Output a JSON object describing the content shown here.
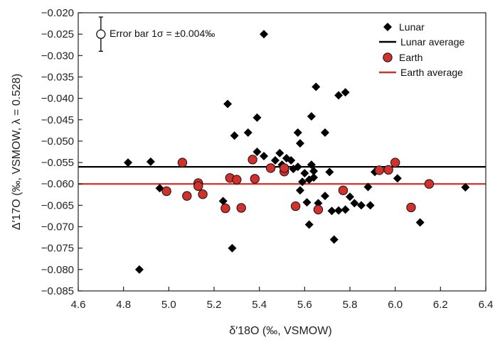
{
  "chart_data": {
    "type": "scatter",
    "title": "",
    "xlabel": "δ′18O (‰, VSMOW)",
    "ylabel": "Δ′17O (‰, VSMOW, λ = 0.528)",
    "xlim": [
      4.6,
      6.4
    ],
    "ylim": [
      -0.085,
      -0.02
    ],
    "x_ticks": [
      4.6,
      4.8,
      5.0,
      5.2,
      5.4,
      5.6,
      5.8,
      6.0,
      6.2,
      6.4
    ],
    "x_tick_labels": [
      "4.6",
      "4.8",
      "5.0",
      "5.2",
      "5.4",
      "5.6",
      "5.8",
      "6.0",
      "6.2",
      "6.4"
    ],
    "y_ticks": [
      -0.02,
      -0.025,
      -0.03,
      -0.035,
      -0.04,
      -0.045,
      -0.05,
      -0.055,
      -0.06,
      -0.065,
      -0.07,
      -0.075,
      -0.08,
      -0.085
    ],
    "y_tick_labels": [
      "−0.020",
      "−0.025",
      "−0.030",
      "−0.035",
      "−0.040",
      "−0.045",
      "−0.050",
      "−0.055",
      "−0.060",
      "−0.065",
      "−0.070",
      "−0.075",
      "−0.080",
      "−0.085"
    ],
    "grid": false,
    "legend_position": "top-right",
    "annotation": {
      "text": "Error bar 1σ = ±0.004‰",
      "x": 4.7,
      "y": -0.025,
      "error": 0.004
    },
    "series": [
      {
        "name": "Lunar",
        "marker": "diamond",
        "color": "#000000",
        "points": [
          [
            4.82,
            -0.055
          ],
          [
            4.87,
            -0.08
          ],
          [
            4.92,
            -0.0548
          ],
          [
            4.96,
            -0.061
          ],
          [
            5.24,
            -0.064
          ],
          [
            5.26,
            -0.0413
          ],
          [
            5.28,
            -0.075
          ],
          [
            5.29,
            -0.0487
          ],
          [
            5.35,
            -0.048
          ],
          [
            5.39,
            -0.0445
          ],
          [
            5.39,
            -0.0525
          ],
          [
            5.42,
            -0.025
          ],
          [
            5.42,
            -0.0535
          ],
          [
            5.47,
            -0.0545
          ],
          [
            5.49,
            -0.0528
          ],
          [
            5.5,
            -0.0555
          ],
          [
            5.52,
            -0.054
          ],
          [
            5.54,
            -0.0545
          ],
          [
            5.55,
            -0.0565
          ],
          [
            5.57,
            -0.056
          ],
          [
            5.57,
            -0.048
          ],
          [
            5.58,
            -0.0505
          ],
          [
            5.58,
            -0.0615
          ],
          [
            5.59,
            -0.0595
          ],
          [
            5.6,
            -0.0575
          ],
          [
            5.61,
            -0.0643
          ],
          [
            5.62,
            -0.059
          ],
          [
            5.62,
            -0.0695
          ],
          [
            5.63,
            -0.0442
          ],
          [
            5.63,
            -0.0555
          ],
          [
            5.64,
            -0.0585
          ],
          [
            5.64,
            -0.057
          ],
          [
            5.65,
            -0.0373
          ],
          [
            5.66,
            -0.0645
          ],
          [
            5.69,
            -0.048
          ],
          [
            5.69,
            -0.0628
          ],
          [
            5.71,
            -0.0572
          ],
          [
            5.72,
            -0.0663
          ],
          [
            5.73,
            -0.073
          ],
          [
            5.75,
            -0.0393
          ],
          [
            5.75,
            -0.0662
          ],
          [
            5.78,
            -0.0386
          ],
          [
            5.78,
            -0.066
          ],
          [
            5.8,
            -0.063
          ],
          [
            5.82,
            -0.0645
          ],
          [
            5.85,
            -0.065
          ],
          [
            5.88,
            -0.0607
          ],
          [
            5.89,
            -0.065
          ],
          [
            5.91,
            -0.0572
          ],
          [
            6.01,
            -0.0587
          ],
          [
            6.11,
            -0.069
          ],
          [
            6.31,
            -0.0608
          ]
        ]
      },
      {
        "name": "Earth",
        "marker": "circle",
        "color": "#d0312d",
        "points": [
          [
            4.99,
            -0.0617
          ],
          [
            5.06,
            -0.055
          ],
          [
            5.08,
            -0.0628
          ],
          [
            5.13,
            -0.0598
          ],
          [
            5.13,
            -0.0605
          ],
          [
            5.15,
            -0.0624
          ],
          [
            5.25,
            -0.0657
          ],
          [
            5.27,
            -0.0586
          ],
          [
            5.3,
            -0.059
          ],
          [
            5.32,
            -0.0656
          ],
          [
            5.37,
            -0.0543
          ],
          [
            5.38,
            -0.0588
          ],
          [
            5.45,
            -0.0563
          ],
          [
            5.51,
            -0.0571
          ],
          [
            5.51,
            -0.0563
          ],
          [
            5.56,
            -0.0652
          ],
          [
            5.66,
            -0.066
          ],
          [
            5.77,
            -0.0615
          ],
          [
            5.93,
            -0.0568
          ],
          [
            5.97,
            -0.0567
          ],
          [
            6.0,
            -0.055
          ],
          [
            6.07,
            -0.0655
          ],
          [
            6.15,
            -0.06
          ]
        ]
      },
      {
        "name": "Lunar average",
        "marker": "line",
        "color": "#000000",
        "value": -0.056
      },
      {
        "name": "Earth average",
        "marker": "line",
        "color": "#d0312d",
        "value": -0.06
      }
    ]
  }
}
